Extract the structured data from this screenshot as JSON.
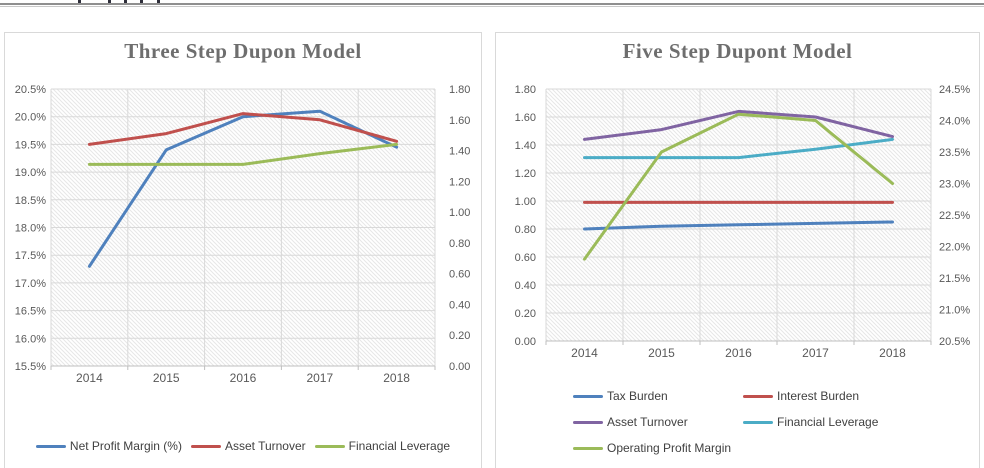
{
  "page": {
    "header_note": "clipped text row above a gray horizontal divider rule"
  },
  "chart_data": [
    {
      "type": "line",
      "title": "Three Step Dupon Model",
      "categories": [
        "2014",
        "2015",
        "2016",
        "2017",
        "2018"
      ],
      "axes": {
        "left": {
          "min": 15.5,
          "max": 20.5,
          "step": 0.5,
          "format": "percent",
          "tick_labels": [
            "20.5%",
            "20.0%",
            "19.5%",
            "19.0%",
            "18.5%",
            "18.0%",
            "17.5%",
            "17.0%",
            "16.5%",
            "16.0%",
            "15.5%"
          ]
        },
        "right": {
          "min": 0.0,
          "max": 1.8,
          "step": 0.2,
          "format": "decimal",
          "tick_labels": [
            "1.80",
            "1.60",
            "1.40",
            "1.20",
            "1.00",
            "0.80",
            "0.60",
            "0.40",
            "0.20",
            "0.00"
          ]
        }
      },
      "series": [
        {
          "name": "Net Profit Margin (%)",
          "axis": "left",
          "color": "#4F81BD",
          "values": [
            17.3,
            19.4,
            20.0,
            20.1,
            19.45
          ]
        },
        {
          "name": "Asset Turnover",
          "axis": "right",
          "color": "#C0504D",
          "values": [
            1.44,
            1.51,
            1.64,
            1.6,
            1.46
          ]
        },
        {
          "name": "Financial Leverage",
          "axis": "right",
          "color": "#9BBB59",
          "values": [
            1.31,
            1.31,
            1.31,
            1.38,
            1.44
          ]
        }
      ],
      "grid": true,
      "plot_fill": "light-downward-diagonal-hatch",
      "legend_layout": "row-center",
      "legend_position": "bottom"
    },
    {
      "type": "line",
      "title": "Five Step Dupont Model",
      "categories": [
        "2014",
        "2015",
        "2016",
        "2017",
        "2018"
      ],
      "axes": {
        "left": {
          "min": 0.0,
          "max": 1.8,
          "step": 0.2,
          "format": "decimal",
          "tick_labels": [
            "1.80",
            "1.60",
            "1.40",
            "1.20",
            "1.00",
            "0.80",
            "0.60",
            "0.40",
            "0.20",
            "0.00"
          ]
        },
        "right": {
          "min": 20.5,
          "max": 24.5,
          "step": 0.5,
          "format": "percent",
          "tick_labels": [
            "24.5%",
            "24.0%",
            "23.5%",
            "23.0%",
            "22.5%",
            "22.0%",
            "21.5%",
            "21.0%",
            "20.5%"
          ]
        }
      },
      "series": [
        {
          "name": "Tax Burden",
          "axis": "left",
          "color": "#4F81BD",
          "values": [
            0.8,
            0.82,
            0.83,
            0.84,
            0.85
          ]
        },
        {
          "name": "Interest Burden",
          "axis": "left",
          "color": "#C0504D",
          "values": [
            0.99,
            0.99,
            0.99,
            0.99,
            0.99
          ]
        },
        {
          "name": "Asset Turnover",
          "axis": "left",
          "color": "#8064A2",
          "values": [
            1.44,
            1.51,
            1.64,
            1.6,
            1.46
          ]
        },
        {
          "name": "Financial Leverage",
          "axis": "left",
          "color": "#4BACC6",
          "values": [
            1.31,
            1.31,
            1.31,
            1.37,
            1.44
          ]
        },
        {
          "name": "Operating Profit Margin",
          "axis": "right",
          "color": "#9BBB59",
          "values": [
            21.8,
            23.5,
            24.1,
            24.0,
            23.0
          ]
        }
      ],
      "grid": true,
      "plot_fill": "light-downward-diagonal-hatch",
      "legend_layout": "two-column",
      "legend_position": "bottom"
    }
  ],
  "style_colors": {
    "title_text": "#6e6e6e",
    "axis_text": "#595959",
    "legend_text": "#404040",
    "gridline": "#d9d9d9",
    "axis_line": "#bfbfbf",
    "hatch_line": "#e6e6e6",
    "box_border": "#d9d9d9"
  }
}
